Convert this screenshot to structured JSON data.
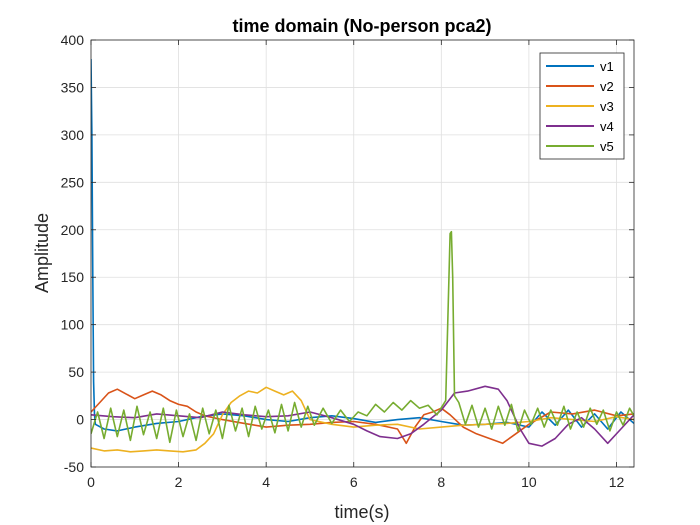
{
  "chart_data": {
    "type": "line",
    "title": "time domain (No-person pca2)",
    "xlabel": "time(s)",
    "ylabel": "Amplitude",
    "xlim": [
      0,
      12.4
    ],
    "ylim": [
      -50,
      400
    ],
    "xticks": [
      0,
      2,
      4,
      6,
      8,
      10,
      12
    ],
    "yticks": [
      -50,
      0,
      50,
      100,
      150,
      200,
      250,
      300,
      350,
      400
    ],
    "xtick_labels": [
      "0",
      "2",
      "4",
      "6",
      "8",
      "10",
      "12"
    ],
    "ytick_labels": [
      "-50",
      "0",
      "50",
      "100",
      "150",
      "200",
      "250",
      "300",
      "350",
      "400"
    ],
    "grid": true,
    "legend_position": "top-right",
    "series": [
      {
        "name": "v1",
        "color": "#0072BD",
        "x": [
          0,
          0.02,
          0.04,
          0.06,
          0.08,
          0.1,
          0.3,
          0.6,
          1.0,
          1.5,
          2.0,
          2.5,
          3.0,
          3.5,
          4.0,
          4.5,
          5.0,
          5.5,
          6.0,
          6.5,
          7.0,
          7.5,
          8.0,
          8.5,
          9.0,
          9.5,
          10.0,
          10.3,
          10.6,
          10.9,
          11.2,
          11.5,
          11.8,
          12.1,
          12.4
        ],
        "y": [
          380,
          300,
          150,
          40,
          5,
          -5,
          -10,
          -12,
          -8,
          -4,
          -2,
          3,
          6,
          4,
          0,
          -2,
          2,
          4,
          1,
          -3,
          0,
          2,
          -2,
          -6,
          -5,
          -3,
          -8,
          8,
          -6,
          10,
          -8,
          6,
          -10,
          8,
          -4
        ]
      },
      {
        "name": "v2",
        "color": "#D95319",
        "x": [
          0,
          0.2,
          0.4,
          0.6,
          0.8,
          1.0,
          1.2,
          1.4,
          1.6,
          1.8,
          2.0,
          2.2,
          2.4,
          2.6,
          3.0,
          3.5,
          4.0,
          4.5,
          5.0,
          5.5,
          6.0,
          6.5,
          7.0,
          7.2,
          7.4,
          7.6,
          7.8,
          8.0,
          8.2,
          8.5,
          8.8,
          9.1,
          9.4,
          9.7,
          10.0,
          10.5,
          11.0,
          11.5,
          12.0,
          12.4
        ],
        "y": [
          8,
          18,
          28,
          32,
          27,
          22,
          26,
          30,
          26,
          20,
          16,
          14,
          8,
          4,
          0,
          -4,
          -8,
          -6,
          -5,
          -3,
          -2,
          -5,
          -10,
          -25,
          -8,
          5,
          8,
          12,
          5,
          -8,
          -15,
          -20,
          -25,
          -15,
          -5,
          8,
          6,
          10,
          4,
          6
        ]
      },
      {
        "name": "v3",
        "color": "#EDB120",
        "x": [
          0,
          0.3,
          0.6,
          0.9,
          1.2,
          1.5,
          1.8,
          2.1,
          2.4,
          2.6,
          2.8,
          3.0,
          3.2,
          3.4,
          3.6,
          3.8,
          4.0,
          4.2,
          4.4,
          4.6,
          4.8,
          5.0,
          5.5,
          6.0,
          6.5,
          7.0,
          7.5,
          8.0,
          8.5,
          9.0,
          9.5,
          10.0,
          10.5,
          11.0,
          11.5,
          12.0,
          12.4
        ],
        "y": [
          -30,
          -33,
          -32,
          -34,
          -33,
          -32,
          -33,
          -34,
          -32,
          -25,
          -15,
          5,
          18,
          25,
          30,
          28,
          34,
          30,
          26,
          30,
          20,
          0,
          -5,
          -8,
          -6,
          -5,
          -10,
          -8,
          -6,
          -5,
          -4,
          -2,
          2,
          0,
          -2,
          3,
          0
        ]
      },
      {
        "name": "v4",
        "color": "#7E2F8E",
        "x": [
          0,
          0.5,
          1.0,
          1.5,
          2.0,
          2.5,
          3.0,
          3.5,
          4.0,
          4.5,
          5.0,
          5.5,
          6.0,
          6.3,
          6.6,
          7.0,
          7.3,
          7.6,
          8.0,
          8.3,
          8.6,
          9.0,
          9.3,
          9.5,
          9.8,
          10.0,
          10.3,
          10.6,
          10.9,
          11.2,
          11.5,
          11.8,
          12.1,
          12.4
        ],
        "y": [
          5,
          3,
          2,
          6,
          4,
          2,
          8,
          5,
          3,
          4,
          8,
          2,
          -5,
          -12,
          -18,
          -20,
          -15,
          -5,
          10,
          28,
          30,
          35,
          32,
          20,
          -10,
          -25,
          -28,
          -20,
          -5,
          2,
          -10,
          -25,
          -10,
          5
        ]
      },
      {
        "name": "v5",
        "color": "#77AC30",
        "x": [
          0,
          0.15,
          0.3,
          0.45,
          0.6,
          0.75,
          0.9,
          1.05,
          1.2,
          1.35,
          1.5,
          1.65,
          1.8,
          1.95,
          2.1,
          2.25,
          2.4,
          2.55,
          2.7,
          2.85,
          3.0,
          3.15,
          3.3,
          3.45,
          3.6,
          3.75,
          3.9,
          4.05,
          4.2,
          4.35,
          4.5,
          4.65,
          4.8,
          4.95,
          5.1,
          5.3,
          5.5,
          5.7,
          5.9,
          6.1,
          6.3,
          6.5,
          6.7,
          6.9,
          7.1,
          7.3,
          7.5,
          7.7,
          7.9,
          8.1,
          8.2,
          8.23,
          8.26,
          8.3,
          8.4,
          8.55,
          8.7,
          8.85,
          9.0,
          9.15,
          9.3,
          9.45,
          9.6,
          9.75,
          9.9,
          10.05,
          10.2,
          10.35,
          10.5,
          10.65,
          10.8,
          10.95,
          11.1,
          11.25,
          11.4,
          11.55,
          11.7,
          11.85,
          12.0,
          12.15,
          12.3,
          12.4
        ],
        "y": [
          -15,
          8,
          -20,
          12,
          -18,
          10,
          -22,
          14,
          -16,
          8,
          -20,
          12,
          -24,
          10,
          -18,
          6,
          -22,
          12,
          -15,
          10,
          -20,
          15,
          -12,
          12,
          -18,
          14,
          -10,
          10,
          -14,
          16,
          -12,
          18,
          -8,
          14,
          -6,
          12,
          -4,
          10,
          -2,
          8,
          4,
          16,
          8,
          18,
          10,
          20,
          12,
          15,
          5,
          20,
          196,
          198,
          150,
          25,
          18,
          -5,
          15,
          -8,
          12,
          -10,
          14,
          -6,
          16,
          -12,
          10,
          -5,
          12,
          -8,
          10,
          -6,
          14,
          -10,
          8,
          -8,
          12,
          -5,
          10,
          -12,
          8,
          -6,
          12,
          4
        ]
      }
    ]
  }
}
